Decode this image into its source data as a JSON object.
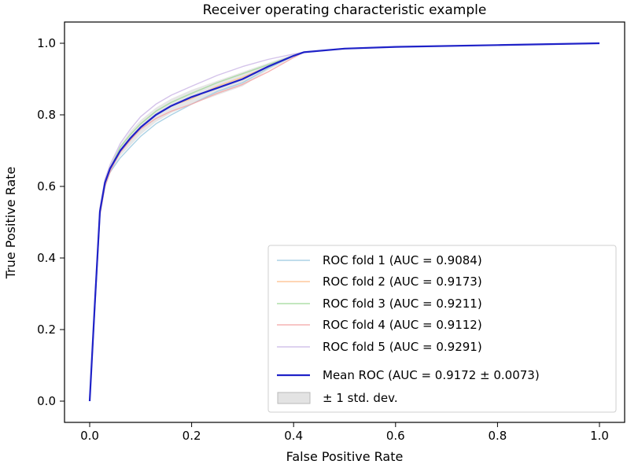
{
  "chart_data": {
    "type": "line",
    "title": "Receiver operating characteristic example",
    "xlabel": "False Positive Rate",
    "ylabel": "True Positive Rate",
    "xlim": [
      -0.05,
      1.05
    ],
    "ylim": [
      -0.05,
      1.05
    ],
    "xticks": [
      "0.0",
      "0.2",
      "0.4",
      "0.6",
      "0.8",
      "1.0"
    ],
    "yticks": [
      "0.0",
      "0.2",
      "0.4",
      "0.6",
      "0.8",
      "1.0"
    ],
    "grid": false,
    "legend_position": "lower right",
    "series": [
      {
        "name": "ROC fold 1 (AUC = 0.9084)",
        "color": "#9ecae1",
        "x": [
          0,
          0.01,
          0.02,
          0.03,
          0.04,
          0.05,
          0.06,
          0.08,
          0.1,
          0.13,
          0.16,
          0.2,
          0.25,
          0.3,
          0.35,
          0.4,
          0.42,
          0.5,
          0.6,
          0.8,
          1.0
        ],
        "y": [
          0,
          0.26,
          0.52,
          0.6,
          0.64,
          0.66,
          0.68,
          0.71,
          0.74,
          0.775,
          0.8,
          0.83,
          0.865,
          0.89,
          0.93,
          0.965,
          0.975,
          0.985,
          0.99,
          0.995,
          1.0
        ]
      },
      {
        "name": "ROC fold 2 (AUC = 0.9173)",
        "color": "#fdc08c",
        "x": [
          0,
          0.01,
          0.02,
          0.03,
          0.04,
          0.05,
          0.06,
          0.08,
          0.1,
          0.13,
          0.16,
          0.2,
          0.25,
          0.3,
          0.35,
          0.4,
          0.42,
          0.5,
          0.6,
          0.8,
          1.0
        ],
        "y": [
          0,
          0.27,
          0.53,
          0.61,
          0.65,
          0.675,
          0.7,
          0.73,
          0.765,
          0.8,
          0.825,
          0.845,
          0.88,
          0.905,
          0.935,
          0.965,
          0.975,
          0.985,
          0.99,
          0.995,
          1.0
        ]
      },
      {
        "name": "ROC fold 3 (AUC = 0.9211)",
        "color": "#a1d99b",
        "x": [
          0,
          0.01,
          0.02,
          0.03,
          0.04,
          0.05,
          0.06,
          0.08,
          0.1,
          0.13,
          0.16,
          0.2,
          0.25,
          0.3,
          0.35,
          0.4,
          0.42,
          0.5,
          0.6,
          0.8,
          1.0
        ],
        "y": [
          0,
          0.27,
          0.53,
          0.61,
          0.65,
          0.68,
          0.71,
          0.745,
          0.775,
          0.81,
          0.835,
          0.86,
          0.89,
          0.915,
          0.94,
          0.965,
          0.975,
          0.985,
          0.99,
          0.995,
          1.0
        ]
      },
      {
        "name": "ROC fold 4 (AUC = 0.9112)",
        "color": "#f4a6a6",
        "x": [
          0,
          0.01,
          0.02,
          0.03,
          0.04,
          0.05,
          0.06,
          0.08,
          0.1,
          0.13,
          0.16,
          0.2,
          0.25,
          0.3,
          0.35,
          0.4,
          0.42,
          0.5,
          0.6,
          0.8,
          1.0
        ],
        "y": [
          0,
          0.26,
          0.52,
          0.6,
          0.64,
          0.67,
          0.695,
          0.73,
          0.76,
          0.79,
          0.81,
          0.83,
          0.86,
          0.885,
          0.92,
          0.96,
          0.975,
          0.985,
          0.99,
          0.995,
          1.0
        ]
      },
      {
        "name": "ROC fold 5 (AUC = 0.9291)",
        "color": "#cdb8e6",
        "x": [
          0,
          0.01,
          0.02,
          0.03,
          0.04,
          0.05,
          0.06,
          0.08,
          0.1,
          0.13,
          0.16,
          0.2,
          0.25,
          0.3,
          0.35,
          0.4,
          0.42,
          0.5,
          0.6,
          0.8,
          1.0
        ],
        "y": [
          0,
          0.28,
          0.54,
          0.62,
          0.66,
          0.69,
          0.72,
          0.76,
          0.795,
          0.83,
          0.855,
          0.88,
          0.91,
          0.935,
          0.955,
          0.97,
          0.975,
          0.985,
          0.99,
          0.995,
          1.0
        ]
      },
      {
        "name": "Mean ROC (AUC = 0.9172 ± 0.0073)",
        "color": "#1f22c8",
        "x": [
          0,
          0.01,
          0.02,
          0.03,
          0.04,
          0.05,
          0.06,
          0.08,
          0.1,
          0.13,
          0.16,
          0.2,
          0.25,
          0.3,
          0.35,
          0.4,
          0.42,
          0.5,
          0.6,
          0.8,
          1.0
        ],
        "y": [
          0,
          0.27,
          0.53,
          0.61,
          0.65,
          0.675,
          0.7,
          0.735,
          0.765,
          0.8,
          0.825,
          0.85,
          0.875,
          0.9,
          0.935,
          0.965,
          0.975,
          0.985,
          0.99,
          0.995,
          1.0
        ]
      }
    ],
    "band": {
      "name": "± 1 std. dev.",
      "color": "#c8c8c8",
      "x": [
        0,
        0.01,
        0.02,
        0.03,
        0.04,
        0.05,
        0.06,
        0.08,
        0.1,
        0.13,
        0.16,
        0.2,
        0.25,
        0.3,
        0.35,
        0.4,
        0.42,
        0.5,
        0.6,
        0.8,
        1.0
      ],
      "upper": [
        0,
        0.28,
        0.54,
        0.62,
        0.665,
        0.69,
        0.715,
        0.755,
        0.785,
        0.82,
        0.845,
        0.87,
        0.895,
        0.92,
        0.945,
        0.97,
        0.977,
        0.987,
        0.991,
        0.996,
        1.0
      ],
      "lower": [
        0,
        0.26,
        0.52,
        0.6,
        0.635,
        0.66,
        0.685,
        0.715,
        0.745,
        0.78,
        0.805,
        0.83,
        0.855,
        0.88,
        0.925,
        0.96,
        0.973,
        0.983,
        0.989,
        0.994,
        1.0
      ]
    }
  }
}
